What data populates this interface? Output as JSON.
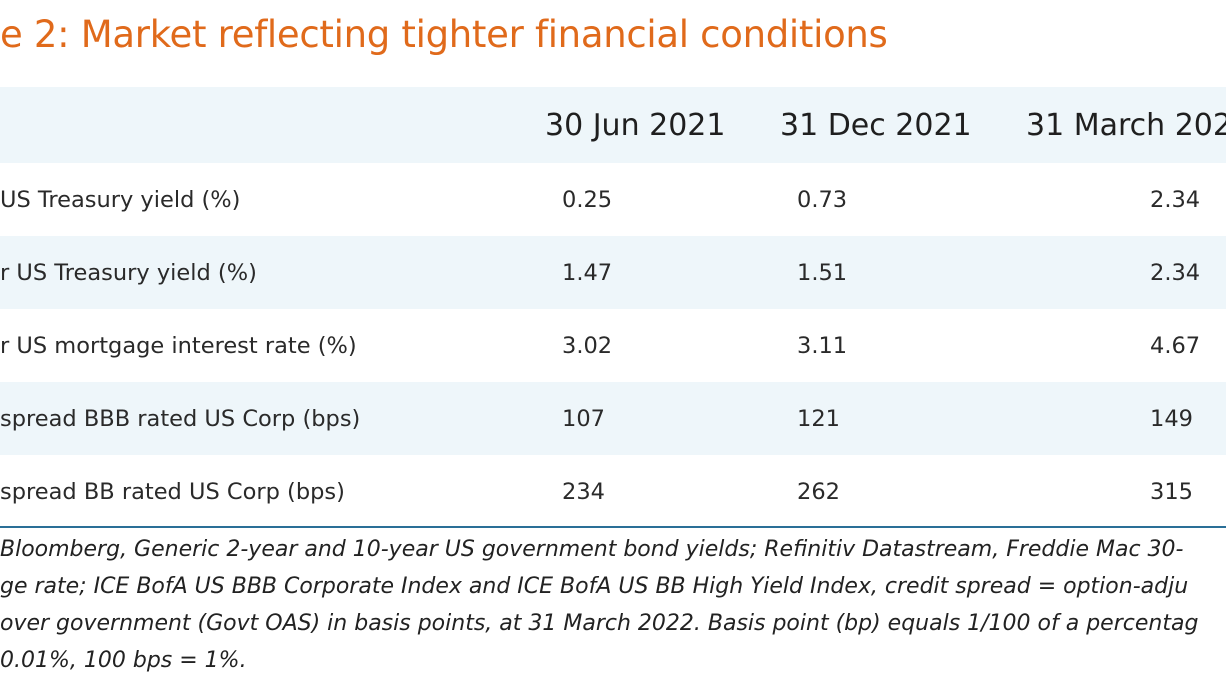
{
  "title": "e 2: Market reflecting tighter financial conditions",
  "table": {
    "headers": [
      "",
      "30 Jun 2021",
      "31 Dec 2021",
      "31 March 202"
    ],
    "rows": [
      {
        "label": " US Treasury yield (%)",
        "v1": "0.25",
        "v2": "0.73",
        "v3": "2.34"
      },
      {
        "label": "r US Treasury yield (%)",
        "v1": "1.47",
        "v2": "1.51",
        "v3": "2.34"
      },
      {
        "label": "r US mortgage interest rate (%)",
        "v1": "3.02",
        "v2": "3.11",
        "v3": "4.67"
      },
      {
        "label": " spread BBB rated US Corp (bps)",
        "v1": "107",
        "v2": "121",
        "v3": "149"
      },
      {
        "label": " spread BB rated US Corp (bps)",
        "v1": "234",
        "v2": "262",
        "v3": "315"
      }
    ]
  },
  "note": {
    "lines": [
      " Bloomberg, Generic 2-year and 10-year US government bond yields; Refinitiv Datastream, Freddie Mac 30-",
      "ge rate; ICE BofA US BBB Corporate Index and ICE BofA US BB High Yield Index, credit spread = option-adju",
      "over government (Govt OAS) in basis points, at 31 March 2022. Basis point (bp) equals 1/100 of a percentag",
      "0.01%, 100 bps = 1%."
    ]
  }
}
